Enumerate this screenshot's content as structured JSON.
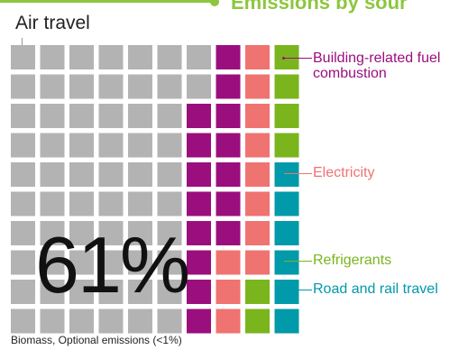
{
  "chart_data": {
    "type": "waffle",
    "title": "Emissions by sour",
    "grid": {
      "rows": 10,
      "cols": 10
    },
    "series": [
      {
        "name": "Air travel",
        "value": 61,
        "color": "#b3b3b3"
      },
      {
        "name": "Building-related fuel combustion",
        "value": 15,
        "color": "#9b0e7e"
      },
      {
        "name": "Electricity",
        "value": 11,
        "color": "#ef7370"
      },
      {
        "name": "Refrigerants",
        "value": 6,
        "color": "#7ab51d"
      },
      {
        "name": "Road and rail travel",
        "value": 6,
        "color": "#009aaa"
      }
    ],
    "headline": "61%",
    "footnote": "Biomass, Optional emissions (<1%)"
  },
  "labels": {
    "air": "Air travel",
    "building_line1": "Building-related fuel",
    "building_line2": "combustion",
    "electricity": "Electricity",
    "refrigerants": "Refrigerants",
    "road": "Road and rail travel"
  }
}
